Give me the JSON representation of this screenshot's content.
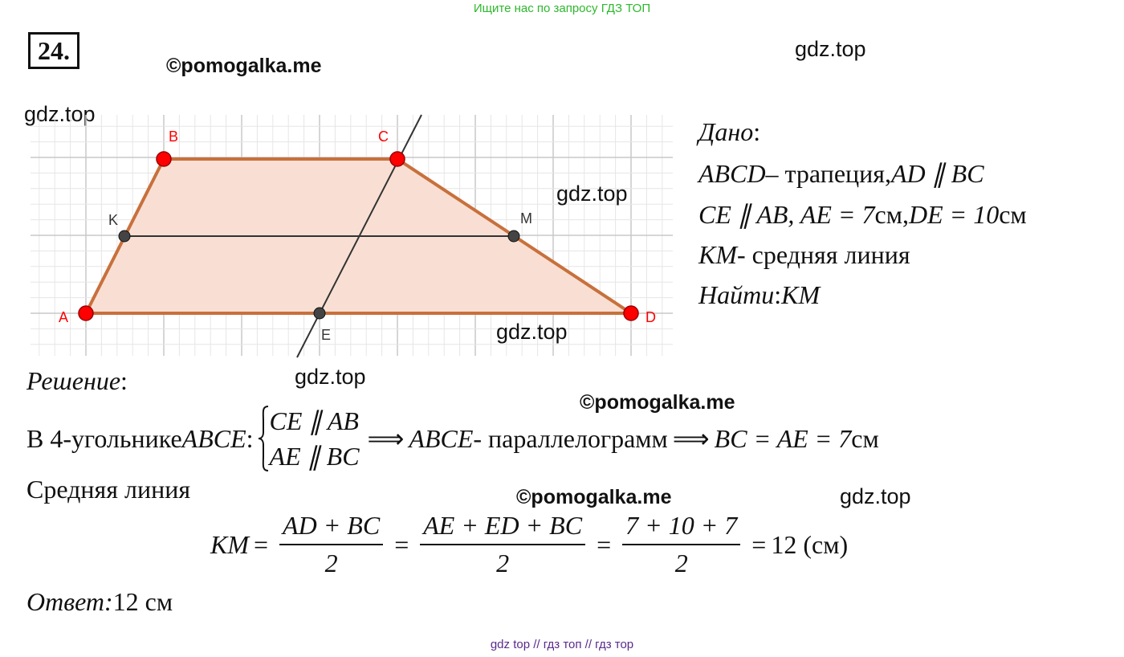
{
  "banner": "Ищите нас по запросу ГДЗ ТОП",
  "problem_number": "24.",
  "watermarks": [
    "©pomogalka.me",
    "gdz.top",
    "gdz.top",
    "gdz.top",
    "gdz.top",
    "gdz.top",
    "©pomogalka.me",
    "©pomogalka.me",
    "gdz.top"
  ],
  "figure": {
    "points": [
      "B",
      "C",
      "K",
      "M",
      "A",
      "D",
      "E"
    ]
  },
  "given": [
    [
      {
        "emph": "Дано"
      },
      {
        "text": ":"
      }
    ],
    [
      {
        "math": "ABCD"
      },
      {
        "text": " – трапеция, "
      },
      {
        "math": "AD ∥ BC"
      }
    ],
    [
      {
        "math": "CE ∥ AB, AE = 7"
      },
      {
        "text": " см, "
      },
      {
        "math": "DE = 10"
      },
      {
        "text": " см"
      }
    ],
    [
      {
        "math": "KM"
      },
      {
        "text": " - средняя линия"
      }
    ],
    [
      {
        "emph": "Найти"
      },
      {
        "text": ": "
      },
      {
        "math": "KM"
      }
    ]
  ],
  "solution": {
    "heading": [
      {
        "emph": "Решение"
      },
      {
        "text": ":"
      }
    ],
    "lines": [
      [
        {
          "text": "В 4-угольнике "
        },
        {
          "math": "ABCE"
        },
        {
          "text": ": "
        },
        {
          "system": [
            "CE ∥ AB",
            "AE ∥ BC"
          ]
        },
        {
          "op": "⟹"
        },
        {
          "math": "ABCE"
        },
        {
          "text": " - параллелограмм "
        },
        {
          "op": "⟹"
        },
        {
          "math": "BC = AE = 7"
        },
        {
          "text": " см"
        }
      ],
      [
        {
          "text": "Средняя линия"
        }
      ],
      [
        {
          "math": "KM"
        },
        {
          "op": "="
        },
        {
          "frac": {
            "num": "AD + BC",
            "den": "2"
          }
        },
        {
          "op": "="
        },
        {
          "frac": {
            "num": "AE + ED + BC",
            "den": "2"
          }
        },
        {
          "op": "="
        },
        {
          "frac": {
            "num": "7 + 10 + 7",
            "den": "2"
          }
        },
        {
          "op": "="
        },
        {
          "text": "12 (см)"
        }
      ]
    ]
  },
  "answer": [
    {
      "emph": "Ответ:"
    },
    {
      "text": " 12 см"
    }
  ],
  "footer": "gdz top  //  гдз топ  //  гдз тор"
}
